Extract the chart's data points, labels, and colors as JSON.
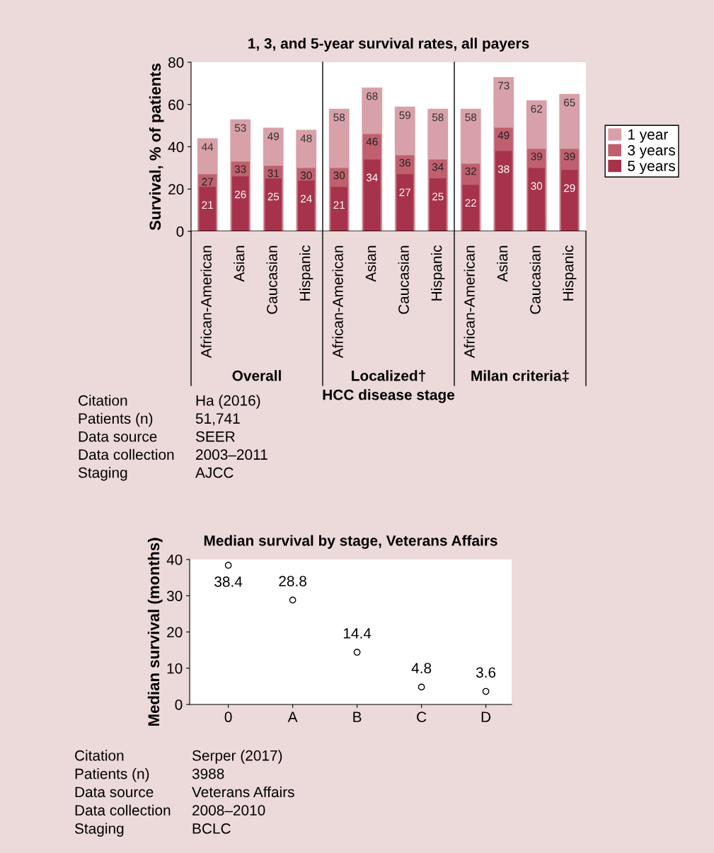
{
  "chart_data": [
    {
      "type": "bar",
      "title": "1, 3, and 5-year survival rates, all payers",
      "xlabel": "HCC disease stage",
      "ylabel": "Survival, % of patients",
      "categories": [
        "African-American",
        "Asian",
        "Caucasian",
        "Hispanic",
        "African-American",
        "Asian",
        "Caucasian",
        "Hispanic",
        "African-American",
        "Asian",
        "Caucasian",
        "Hispanic"
      ],
      "series": [
        {
          "name": "1 year",
          "color": "#d8a1a9",
          "values": [
            44,
            53,
            49,
            48,
            58,
            68,
            59,
            58,
            58,
            73,
            62,
            65
          ]
        },
        {
          "name": "3 years",
          "color": "#c0606f",
          "values": [
            27,
            33,
            31,
            30,
            30,
            46,
            36,
            34,
            32,
            49,
            39,
            39
          ]
        },
        {
          "name": "5 years",
          "color": "#a6334b",
          "values": [
            21,
            26,
            25,
            24,
            21,
            34,
            27,
            25,
            22,
            38,
            30,
            29
          ]
        }
      ],
      "ylim": [
        0,
        80
      ],
      "yticks": [
        0,
        20,
        40,
        60,
        80
      ],
      "data_labels": true,
      "legend": "right",
      "grid": false,
      "annotations": [
        "Overall",
        "Localized†",
        "Milan criteria‡",
        "Citation",
        "Ha (2016)",
        "Patients (n)",
        "51,741",
        "Data source",
        "SEER",
        "Data collection",
        "2003–2011",
        "Staging",
        "AJCC"
      ]
    },
    {
      "type": "scatter",
      "title": "Median survival by stage, Veterans Affairs",
      "ylabel": "Median survival (months)",
      "categories": [
        "0",
        "A",
        "B",
        "C",
        "D"
      ],
      "values": [
        38.4,
        28.8,
        14.4,
        4.8,
        3.6
      ],
      "ylim": [
        0,
        40
      ],
      "yticks": [
        0,
        10,
        20,
        30,
        40
      ],
      "data_labels": true,
      "marker": "circle",
      "grid": false,
      "annotations": [
        "Citation",
        "Serper (2017)",
        "Patients (n)",
        "3988",
        "Data source",
        "Veterans Affairs",
        "Data collection",
        "2008–2010",
        "Staging",
        "BCLC"
      ]
    }
  ]
}
